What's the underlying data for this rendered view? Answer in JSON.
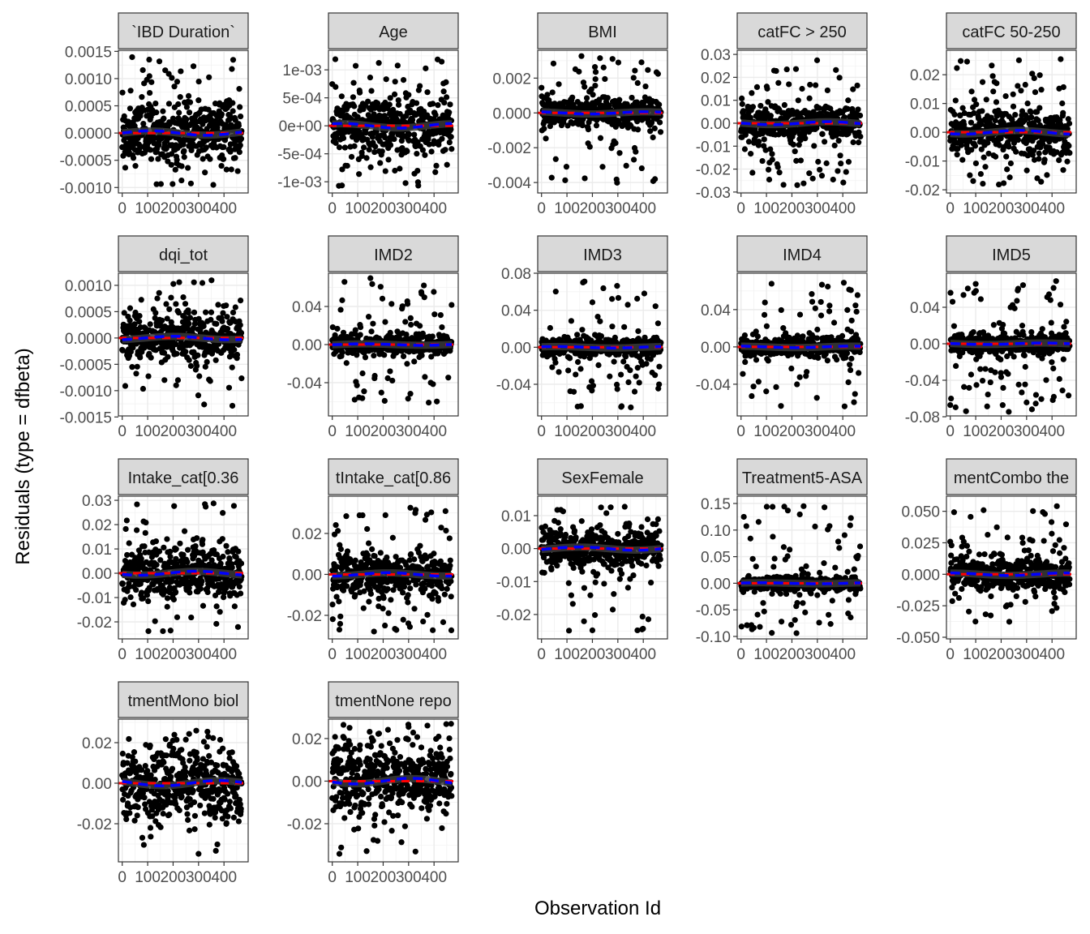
{
  "chart_data": {
    "type": "scatter",
    "xlabel": "Observation Id",
    "ylabel": "Residuals (type = dfbeta)",
    "xlim": [
      -15,
      495
    ],
    "x_ticks": [
      0,
      100,
      200,
      300,
      400
    ],
    "x_tick_labels": [
      "0",
      "100",
      "200",
      "300",
      "400"
    ],
    "n_points_per_panel": 470,
    "grid": true,
    "colors": {
      "points": "#000000",
      "smooth_red": "#ff0000",
      "smooth_blue": "#0000ff",
      "smooth_band": "#3a3a3a",
      "strip_fill": "#d9d9d9"
    },
    "panels": [
      {
        "title": "`IBD Duration`",
        "ylim": [
          -0.0011,
          0.00152
        ],
        "ticks": [
          0.0015,
          0.001,
          0.0005,
          0,
          -0.0005,
          -0.001
        ],
        "tick_labels": [
          "0.0015",
          "0.0010",
          "0.0005",
          "0.0000",
          "-0.0005",
          "-0.0010"
        ],
        "core_sd": 0.00025,
        "range": [
          -0.001,
          0.0014
        ]
      },
      {
        "title": "Age",
        "ylim": [
          -0.0012,
          0.00135
        ],
        "ticks": [
          0.001,
          0.0005,
          0,
          -0.0005,
          -0.001
        ],
        "tick_labels": [
          "1e-03",
          "5e-04",
          "0e+00",
          "-5e-04",
          "-1e-03"
        ],
        "core_sd": 0.00025,
        "range": [
          -0.0011,
          0.0012
        ]
      },
      {
        "title": "BMI",
        "ylim": [
          -0.0046,
          0.0036
        ],
        "ticks": [
          0.002,
          0,
          -0.002,
          -0.004
        ],
        "tick_labels": [
          "0.002",
          "0.000",
          "-0.002",
          "-0.004"
        ],
        "core_sd": 0.0004,
        "range": [
          -0.0042,
          0.0033
        ]
      },
      {
        "title": "catFC > 250",
        "ylim": [
          -0.0304,
          0.0318
        ],
        "ticks": [
          0.03,
          0.02,
          0.01,
          0,
          -0.01,
          -0.02,
          -0.03
        ],
        "tick_labels": [
          "0.03",
          "0.02",
          "0.01",
          "0.00",
          "-0.01",
          "-0.02",
          "-0.03"
        ],
        "core_sd": 0.004,
        "range": [
          -0.027,
          0.029
        ]
      },
      {
        "title": "catFC 50-250",
        "ylim": [
          -0.0211,
          0.0285
        ],
        "ticks": [
          0.02,
          0.01,
          0,
          -0.01,
          -0.02
        ],
        "tick_labels": [
          "0.02",
          "0.01",
          "0.00",
          "-0.01",
          "-0.02"
        ],
        "core_sd": 0.004,
        "range": [
          -0.019,
          0.026
        ]
      },
      {
        "title": "dqi_tot",
        "ylim": [
          -0.00148,
          0.00123
        ],
        "ticks": [
          0.001,
          0.0005,
          0,
          -0.0005,
          -0.001,
          -0.0015
        ],
        "tick_labels": [
          "0.0010",
          "0.0005",
          "0.0000",
          "-0.0005",
          "-0.0010",
          "-0.0015"
        ],
        "core_sd": 0.0002,
        "range": [
          -0.0013,
          0.0011
        ]
      },
      {
        "title": "IMD2",
        "ylim": [
          -0.0749,
          0.0749
        ],
        "ticks": [
          0.04,
          0,
          -0.04
        ],
        "tick_labels": [
          "0.04",
          "0.00",
          "-0.04"
        ],
        "core_sd": 0.005,
        "range": [
          -0.065,
          0.07
        ]
      },
      {
        "title": "IMD3",
        "ylim": [
          -0.0742,
          0.08
        ],
        "ticks": [
          0.08,
          0.04,
          0,
          -0.04
        ],
        "tick_labels": [
          "0.08",
          "0.04",
          "0.00",
          "-0.04"
        ],
        "core_sd": 0.005,
        "range": [
          -0.068,
          0.072
        ]
      },
      {
        "title": "IMD4",
        "ylim": [
          -0.074,
          0.079
        ],
        "ticks": [
          0.04,
          0,
          -0.04
        ],
        "tick_labels": [
          "0.04",
          "0.00",
          "-0.04"
        ],
        "core_sd": 0.005,
        "range": [
          -0.068,
          0.07
        ]
      },
      {
        "title": "IMD5",
        "ylim": [
          -0.0791,
          0.0773
        ],
        "ticks": [
          0.04,
          0,
          -0.04,
          -0.08
        ],
        "tick_labels": [
          "0.04",
          "0.00",
          "-0.04",
          "-0.08"
        ],
        "core_sd": 0.005,
        "range": [
          -0.075,
          0.07
        ]
      },
      {
        "title": "Intake_cat[0.36",
        "ylim": [
          -0.027,
          0.0317
        ],
        "ticks": [
          0.03,
          0.02,
          0.01,
          0,
          -0.01,
          -0.02
        ],
        "tick_labels": [
          "0.03",
          "0.02",
          "0.01",
          "0.00",
          "-0.01",
          "-0.02"
        ],
        "core_sd": 0.005,
        "range": [
          -0.025,
          0.029
        ]
      },
      {
        "title": "tIntake_cat[0.86",
        "ylim": [
          -0.0315,
          0.0382
        ],
        "ticks": [
          0.02,
          0,
          -0.02
        ],
        "tick_labels": [
          "0.02",
          "0.00",
          "-0.02"
        ],
        "core_sd": 0.005,
        "range": [
          -0.028,
          0.034
        ]
      },
      {
        "title": "SexFemale",
        "ylim": [
          -0.0274,
          0.0159
        ],
        "ticks": [
          0.01,
          0,
          -0.01,
          -0.02
        ],
        "tick_labels": [
          "0.01",
          "0.00",
          "-0.01",
          "-0.02"
        ],
        "core_sd": 0.003,
        "range": [
          -0.026,
          0.013
        ]
      },
      {
        "title": "Treatment5-ASA",
        "ylim": [
          -0.1046,
          0.1637
        ],
        "ticks": [
          0.15,
          0.1,
          0.05,
          0,
          -0.05,
          -0.1
        ],
        "tick_labels": [
          "0.15",
          "0.10",
          "0.05",
          "0.00",
          "-0.05",
          "-0.10"
        ],
        "core_sd": 0.006,
        "range": [
          -0.095,
          0.15
        ]
      },
      {
        "title": "mentCombo the",
        "ylim": [
          -0.0513,
          0.062
        ],
        "ticks": [
          0.05,
          0.025,
          0,
          -0.025,
          -0.05
        ],
        "tick_labels": [
          "0.050",
          "0.025",
          "0.000",
          "-0.025",
          "-0.050"
        ],
        "core_sd": 0.006,
        "range": [
          -0.045,
          0.057
        ]
      },
      {
        "title": "tmentMono biol",
        "ylim": [
          -0.0388,
          0.0316
        ],
        "ticks": [
          0.02,
          0,
          -0.02
        ],
        "tick_labels": [
          "0.02",
          "0.00",
          "-0.02"
        ],
        "core_sd": 0.008,
        "range": [
          -0.036,
          0.028
        ]
      },
      {
        "title": "tmentNone repo",
        "ylim": [
          -0.0379,
          0.0291
        ],
        "ticks": [
          0.02,
          0,
          -0.02
        ],
        "tick_labels": [
          "0.02",
          "0.00",
          "-0.02"
        ],
        "core_sd": 0.008,
        "range": [
          -0.035,
          0.027
        ]
      }
    ]
  }
}
